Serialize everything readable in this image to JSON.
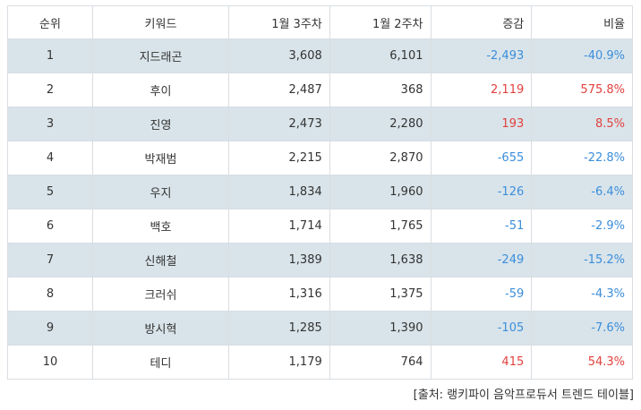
{
  "headers": [
    "순위",
    "키워드",
    "1월 3주차",
    "1월 2주차",
    "증감",
    "비율"
  ],
  "rows": [
    {
      "rank": "1",
      "keyword": "지드래곤",
      "week3": "3,608",
      "week2": "6,101",
      "change": "-2,493",
      "ratio": "-40.9%",
      "trend": "down"
    },
    {
      "rank": "2",
      "keyword": "후이",
      "week3": "2,487",
      "week2": "368",
      "change": "2,119",
      "ratio": "575.8%",
      "trend": "up"
    },
    {
      "rank": "3",
      "keyword": "진영",
      "week3": "2,473",
      "week2": "2,280",
      "change": "193",
      "ratio": "8.5%",
      "trend": "up"
    },
    {
      "rank": "4",
      "keyword": "박재범",
      "week3": "2,215",
      "week2": "2,870",
      "change": "-655",
      "ratio": "-22.8%",
      "trend": "down"
    },
    {
      "rank": "5",
      "keyword": "우지",
      "week3": "1,834",
      "week2": "1,960",
      "change": "-126",
      "ratio": "-6.4%",
      "trend": "down"
    },
    {
      "rank": "6",
      "keyword": "백호",
      "week3": "1,714",
      "week2": "1,765",
      "change": "-51",
      "ratio": "-2.9%",
      "trend": "down"
    },
    {
      "rank": "7",
      "keyword": "신해철",
      "week3": "1,389",
      "week2": "1,638",
      "change": "-249",
      "ratio": "-15.2%",
      "trend": "down"
    },
    {
      "rank": "8",
      "keyword": "크러쉬",
      "week3": "1,316",
      "week2": "1,375",
      "change": "-59",
      "ratio": "-4.3%",
      "trend": "down"
    },
    {
      "rank": "9",
      "keyword": "방시혁",
      "week3": "1,285",
      "week2": "1,390",
      "change": "-105",
      "ratio": "-7.6%",
      "trend": "down"
    },
    {
      "rank": "10",
      "keyword": "테디",
      "week3": "1,179",
      "week2": "764",
      "change": "415",
      "ratio": "54.3%",
      "trend": "up"
    }
  ],
  "colors": {
    "up": "#e2413d",
    "down": "#3b8edb",
    "shaded_row": "#d9e4ea",
    "border": "#d9dee2"
  },
  "source": "[출처: 랭키파이 음악프로듀서 트렌드 테이블]"
}
